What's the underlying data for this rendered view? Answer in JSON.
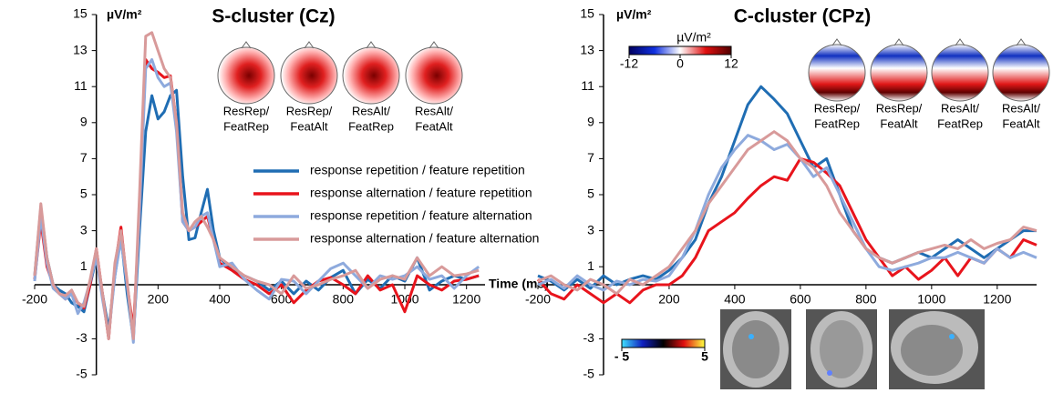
{
  "chart_data": [
    {
      "type": "line",
      "title": "S-cluster (Cz)",
      "ylabel": "µV/m²",
      "xlabel": "Time (ms)",
      "x": [
        -200,
        -180,
        -160,
        -140,
        -120,
        -100,
        -80,
        -60,
        -40,
        -20,
        0,
        20,
        40,
        60,
        80,
        100,
        120,
        140,
        160,
        180,
        200,
        220,
        240,
        260,
        280,
        300,
        320,
        340,
        360,
        380,
        400,
        440,
        480,
        520,
        560,
        600,
        640,
        680,
        720,
        760,
        800,
        840,
        880,
        920,
        960,
        1000,
        1040,
        1080,
        1120,
        1160,
        1200,
        1240
      ],
      "series": [
        {
          "name": "response repetition / feature repetition",
          "color": "#1f6db3",
          "values": [
            0.5,
            4.3,
            1.5,
            0,
            -0.3,
            -0.5,
            -1,
            -1.2,
            -1.5,
            0,
            1.5,
            -0.5,
            -2.5,
            0.5,
            2.7,
            -0.5,
            -3,
            3,
            8.5,
            10.5,
            9.2,
            9.6,
            10.5,
            10.8,
            6,
            2.5,
            2.6,
            4,
            5.3,
            3,
            1.5,
            0.8,
            0.5,
            0.2,
            -0.3,
            0.2,
            -0.5,
            0.2,
            -0.3,
            0.4,
            0.8,
            -0.5,
            0.3,
            -0.2,
            0.5,
            0.2,
            1.5,
            -0.3,
            0.2,
            0.5,
            0.3,
            0.5
          ]
        },
        {
          "name": "response alternation / feature repetition",
          "color": "#e8141c",
          "values": [
            0.3,
            3.5,
            1,
            0,
            -0.5,
            -0.8,
            -0.5,
            -1,
            -1.3,
            0,
            2,
            -0.5,
            -3,
            1,
            3.2,
            0,
            -2.5,
            4,
            12.5,
            12,
            11.8,
            11.5,
            11.6,
            9,
            3.5,
            3,
            3.2,
            3.5,
            3.8,
            2.5,
            1.2,
            0.8,
            0.3,
            0,
            -0.5,
            0,
            -1,
            -0.3,
            0.2,
            0.4,
            0,
            -0.5,
            0.5,
            -0.3,
            0,
            -1.5,
            0.5,
            0,
            -0.3,
            0.2,
            0.3,
            0.5
          ]
        },
        {
          "name": "response repetition / feature alternation",
          "color": "#8eaadd",
          "values": [
            0.2,
            3.8,
            1.2,
            -0.2,
            -0.5,
            -0.8,
            -0.5,
            -1.6,
            -1,
            0.2,
            1.5,
            -0.8,
            -2.8,
            0.5,
            2.5,
            0,
            -3.2,
            4,
            12,
            12.5,
            11.5,
            11,
            11.2,
            8.5,
            3.5,
            3,
            3.2,
            3.8,
            4,
            2.5,
            1,
            1.2,
            0.3,
            -0.3,
            -0.8,
            0.3,
            0.2,
            -0.5,
            0.2,
            0.9,
            1.2,
            0.5,
            -0.2,
            0.5,
            0.3,
            0.5,
            1,
            0.3,
            0.5,
            -0.2,
            0.5,
            1
          ]
        },
        {
          "name": "response alternation / feature alternation",
          "color": "#d89a9a",
          "values": [
            0.5,
            4.5,
            1.5,
            0,
            -0.5,
            -0.6,
            -0.3,
            -1,
            -1.2,
            0.3,
            2,
            -0.5,
            -3,
            1.2,
            3,
            0.2,
            -3,
            5,
            13.8,
            14,
            13,
            12,
            11.5,
            9,
            4,
            3,
            3.5,
            3.8,
            3.2,
            2.5,
            1.5,
            1,
            0.5,
            0.2,
            0,
            -0.5,
            0.5,
            -0.2,
            0,
            0.3,
            0.5,
            0.8,
            -0.2,
            0.3,
            0.5,
            0.3,
            1.5,
            0.5,
            1,
            0.5,
            0.6,
            0.8
          ]
        }
      ],
      "xlim": [
        -200,
        1260
      ],
      "xticks": [
        -200,
        200,
        400,
        600,
        800,
        1000,
        1200
      ],
      "ylim": [
        -5,
        15
      ],
      "yticks": [
        -5,
        -3,
        1,
        3,
        5,
        7,
        9,
        11,
        13,
        15
      ],
      "topo_labels": [
        [
          "ResRep/",
          "FeatRep"
        ],
        [
          "ResRep/",
          "FeatAlt"
        ],
        [
          "ResAlt/",
          "FeatRep"
        ],
        [
          "ResAlt/",
          "FeatAlt"
        ]
      ]
    },
    {
      "type": "line",
      "title": "C-cluster (CPz)",
      "ylabel": "µV/m²",
      "x": [
        -200,
        -160,
        -120,
        -80,
        -40,
        0,
        40,
        80,
        120,
        160,
        200,
        240,
        280,
        320,
        360,
        400,
        440,
        480,
        520,
        560,
        600,
        640,
        680,
        720,
        760,
        800,
        840,
        880,
        920,
        960,
        1000,
        1040,
        1080,
        1120,
        1160,
        1200,
        1240,
        1280,
        1320
      ],
      "series": [
        {
          "color": "#1f6db3",
          "values": [
            0.5,
            0.2,
            -0.3,
            0.3,
            -0.2,
            0.5,
            0,
            0.3,
            0.5,
            0.3,
            0.8,
            1.5,
            2.5,
            4.5,
            6,
            8,
            10,
            11,
            10.3,
            9.5,
            8,
            6.5,
            7,
            5,
            3,
            2,
            1.5,
            1.2,
            1.5,
            1.8,
            1.5,
            2,
            2.5,
            2,
            1.5,
            2,
            2.5,
            3,
            3
          ]
        },
        {
          "color": "#e8141c",
          "values": [
            0.3,
            -0.5,
            -0.8,
            0,
            -0.5,
            -1,
            -0.5,
            -1,
            -0.3,
            0,
            0,
            0.5,
            1.5,
            3,
            3.5,
            4,
            4.8,
            5.5,
            6,
            5.8,
            7,
            6.8,
            6.2,
            5.5,
            4,
            2.5,
            1.5,
            0.5,
            1,
            0.3,
            0.8,
            1.5,
            0.5,
            1.5,
            1.2,
            2,
            1.5,
            2.5,
            2.2
          ]
        },
        {
          "color": "#8eaadd",
          "values": [
            0,
            0.3,
            -0.2,
            0.5,
            0,
            -0.3,
            0.2,
            0,
            0.3,
            0.2,
            0.5,
            1.5,
            3,
            5,
            6.5,
            7.5,
            8.3,
            8,
            7.5,
            7.8,
            7,
            6,
            6.5,
            5,
            3.5,
            2,
            1,
            0.8,
            1,
            1.2,
            1.5,
            1.5,
            1.8,
            1.5,
            1.2,
            2,
            1.5,
            1.8,
            1.5
          ]
        },
        {
          "color": "#d89a9a",
          "values": [
            0.2,
            0.5,
            0,
            -0.3,
            0.3,
            0,
            -0.5,
            0.3,
            0,
            0.5,
            1,
            2,
            3,
            4.5,
            5.5,
            6.5,
            7.5,
            8,
            8.5,
            8,
            7,
            6.5,
            5.5,
            4,
            3,
            2,
            1.5,
            1.2,
            1.5,
            1.8,
            2,
            2.2,
            2,
            2.5,
            2,
            2.3,
            2.5,
            3.2,
            3
          ]
        }
      ],
      "xlim": [
        -200,
        1320
      ],
      "xticks": [
        -200,
        200,
        400,
        600,
        800,
        1000,
        1200
      ],
      "ylim": [
        -5,
        15
      ],
      "yticks": [
        -5,
        -3,
        1,
        3,
        5,
        7,
        9,
        11,
        13,
        15
      ],
      "topo_labels": [
        [
          "ResRep/",
          "FeatRep"
        ],
        [
          "ResRep/",
          "FeatAlt"
        ],
        [
          "ResAlt/",
          "FeatRep"
        ],
        [
          "ResAlt/",
          "FeatAlt"
        ]
      ],
      "colorbar": {
        "label": "µV/m²",
        "ticks": [
          -12,
          0,
          12
        ]
      },
      "mri_colorbar": {
        "ticks": [
          {
            "value": -5,
            "label": "- 5"
          },
          5
        ]
      }
    }
  ]
}
